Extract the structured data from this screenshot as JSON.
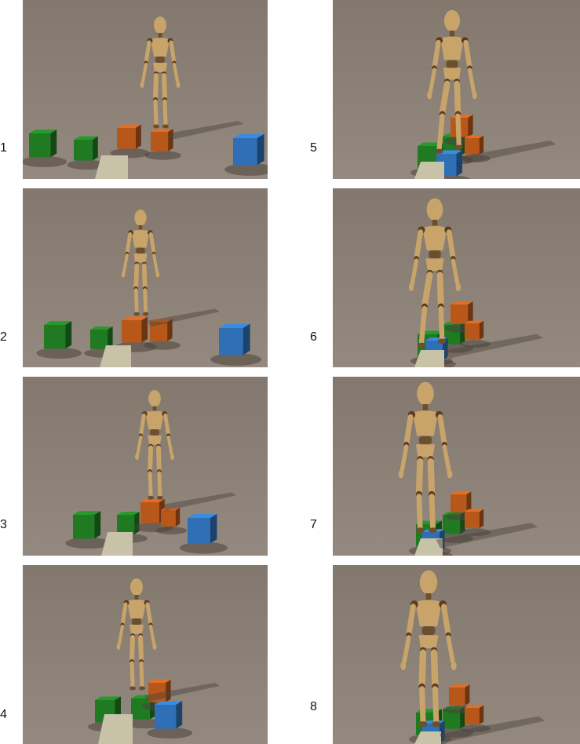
{
  "panels": [
    {
      "label": "1"
    },
    {
      "label": "2"
    },
    {
      "label": "3"
    },
    {
      "label": "4"
    },
    {
      "label": "5"
    },
    {
      "label": "6"
    },
    {
      "label": "7"
    },
    {
      "label": "8"
    }
  ],
  "colors": {
    "background": "#8d8278",
    "figure": "#c9a46a",
    "figure_dark": "#6b4f2e",
    "joint": "#5a3d22",
    "cube_green": "#1f7a22",
    "cube_orange": "#b8571a",
    "cube_blue": "#2f6fb5",
    "ramp": "#c8c2a8",
    "shadow": "#4a423b"
  }
}
